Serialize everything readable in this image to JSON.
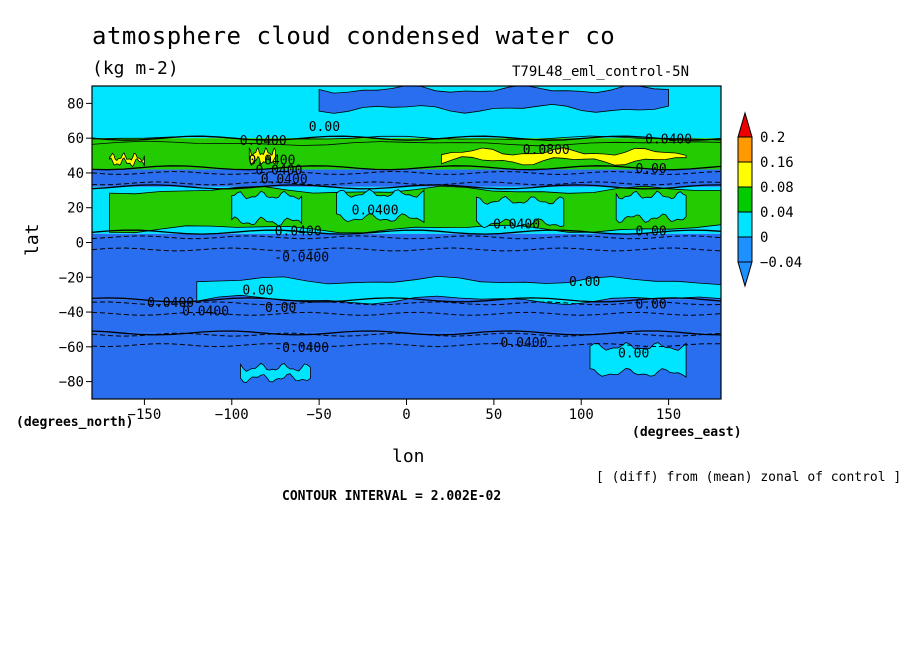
{
  "chart_data": {
    "type": "heatmap",
    "title": "atmosphere cloud condensed water co",
    "units": "(kg m-2)",
    "run_label": "T79L48_eml_control-5N",
    "xlabel": "lon",
    "ylabel": "lat",
    "x_units": "(degrees_east)",
    "y_units": "(degrees_north)",
    "xlim": [
      -180,
      180
    ],
    "ylim": [
      -90,
      90
    ],
    "x_ticks": [
      -150,
      -100,
      -50,
      0,
      50,
      100,
      150
    ],
    "y_ticks": [
      80,
      60,
      40,
      20,
      0,
      -20,
      -40,
      -60,
      -80
    ],
    "note": "[ (diff) from (mean) zonal of control ]",
    "contour_interval_text": "CONTOUR INTERVAL = 2.002E-02",
    "colorbar": {
      "levels": [
        -0.04,
        0,
        0.04,
        0.08,
        0.16,
        0.2
      ],
      "labels": [
        "-0.04",
        "0",
        "0.04",
        "0.08",
        "0.16",
        "0.2"
      ],
      "colors": [
        "#1e90ff",
        "#00e5ff",
        "#00cc00",
        "#ffff00",
        "#ff9900",
        "#ee0000"
      ],
      "below_color": "#1e90ff",
      "above_color": "#ee0000"
    },
    "colors": {
      "dark_blue": "#2a6ef0",
      "light_blue": "#00e5ff",
      "pale_cyan": "#40f0ff",
      "green": "#22cc00",
      "yellow": "#ffff00",
      "orange": "#ffa000"
    },
    "bands": [
      {
        "lat_top": 90,
        "lat_bottom": 60,
        "class": "light_blue"
      },
      {
        "lat_top": 60,
        "lat_bottom": 42,
        "class": "green"
      },
      {
        "lat_top": 42,
        "lat_bottom": 32,
        "class": "dark_blue"
      },
      {
        "lat_top": 32,
        "lat_bottom": 5,
        "class": "light_blue"
      },
      {
        "lat_top": 5,
        "lat_bottom": -33,
        "class": "dark_blue"
      },
      {
        "lat_top": -33,
        "lat_bottom": -52,
        "class": "dark_blue"
      },
      {
        "lat_top": -52,
        "lat_bottom": -90,
        "class": "dark_blue"
      }
    ],
    "patches": [
      {
        "class": "dark_blue",
        "lon": [
          -50,
          150
        ],
        "lat": [
          88,
          77
        ]
      },
      {
        "class": "yellow",
        "lon": [
          20,
          160
        ],
        "lat": [
          52,
          47
        ]
      },
      {
        "class": "yellow",
        "lon": [
          -170,
          -150
        ],
        "lat": [
          49,
          46
        ]
      },
      {
        "class": "yellow",
        "lon": [
          -90,
          -75
        ],
        "lat": [
          52,
          47
        ]
      },
      {
        "class": "green",
        "lon": [
          -170,
          180
        ],
        "lat": [
          30,
          8
        ]
      },
      {
        "class": "light_blue",
        "lon": [
          -120,
          180
        ],
        "lat": [
          -22,
          -33
        ]
      },
      {
        "class": "light_blue",
        "lon": [
          105,
          160
        ],
        "lat": [
          -60,
          -75
        ]
      },
      {
        "class": "light_blue",
        "lon": [
          -95,
          -55
        ],
        "lat": [
          -72,
          -78
        ]
      }
    ],
    "contour_labels": [
      {
        "text": "0.00",
        "lon": -47,
        "lat": 64
      },
      {
        "text": "0.0400",
        "lon": -82,
        "lat": 56
      },
      {
        "text": "0.0400",
        "lon": 150,
        "lat": 57
      },
      {
        "text": "0.0800",
        "lon": 80,
        "lat": 51
      },
      {
        "text": "0.0400",
        "lon": -77,
        "lat": 45
      },
      {
        "text": "0.0400",
        "lon": -73,
        "lat": 39
      },
      {
        "text": "0.00",
        "lon": 140,
        "lat": 40
      },
      {
        "text": "0.0400",
        "lon": -70,
        "lat": 34
      },
      {
        "text": "0.0400",
        "lon": -18,
        "lat": 16
      },
      {
        "text": "0.0400",
        "lon": 63,
        "lat": 8
      },
      {
        "text": "0.0400",
        "lon": -62,
        "lat": 4
      },
      {
        "text": "0.00",
        "lon": 140,
        "lat": 4
      },
      {
        "text": "-0.0400",
        "lon": -60,
        "lat": -11
      },
      {
        "text": "0.00",
        "lon": 102,
        "lat": -25
      },
      {
        "text": "0.00",
        "lon": -85,
        "lat": -30
      },
      {
        "text": "0.0400",
        "lon": -135,
        "lat": -37
      },
      {
        "text": "0.0400",
        "lon": -115,
        "lat": -42
      },
      {
        "text": "0.00",
        "lon": -72,
        "lat": -40
      },
      {
        "text": "0.00",
        "lon": 140,
        "lat": -38
      },
      {
        "text": "-0.0400",
        "lon": -60,
        "lat": -63
      },
      {
        "text": "-0.0400",
        "lon": 65,
        "lat": -60
      },
      {
        "text": "0.00",
        "lon": 130,
        "lat": -66
      }
    ]
  }
}
